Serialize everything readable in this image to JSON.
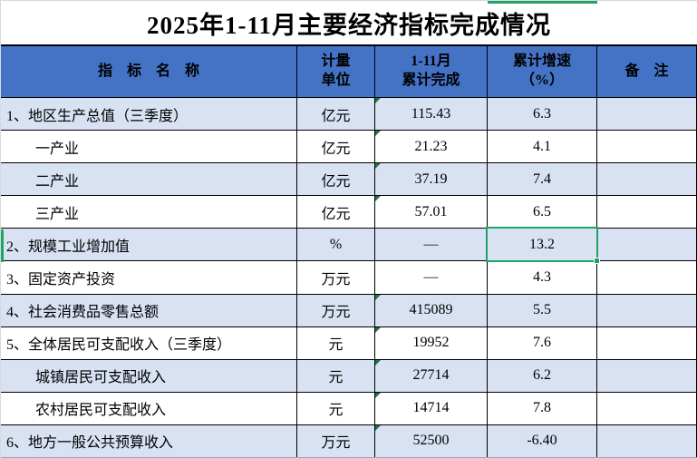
{
  "title": "2025年1-11月主要经济指标完成情况",
  "header": {
    "indicator": "指　标　名　称",
    "unit_line1": "计量",
    "unit_line2": "单位",
    "completed_line1": "1-11月",
    "completed_line2": "累计完成",
    "growth_line1": "累计增速",
    "growth_line2": "（%）",
    "remark": "备　注"
  },
  "rows": [
    {
      "name": "1、地区生产总值（三季度）",
      "unit": "亿元",
      "completed": "115.43",
      "growth": "6.3",
      "remark": ""
    },
    {
      "name": "一产业",
      "unit": "亿元",
      "completed": "21.23",
      "growth": "4.1",
      "remark": ""
    },
    {
      "name": "二产业",
      "unit": "亿元",
      "completed": "37.19",
      "growth": "7.4",
      "remark": ""
    },
    {
      "name": "三产业",
      "unit": "亿元",
      "completed": "57.01",
      "growth": "6.5",
      "remark": ""
    },
    {
      "name": "2、规模工业增加值",
      "unit": "%",
      "completed": "—",
      "growth": "13.2",
      "remark": ""
    },
    {
      "name": "3、固定资产投资",
      "unit": "万元",
      "completed": "—",
      "growth": "4.3",
      "remark": ""
    },
    {
      "name": "4、社会消费品零售总额",
      "unit": "万元",
      "completed": "415089",
      "growth": "5.5",
      "remark": ""
    },
    {
      "name": "5、全体居民可支配收入（三季度）",
      "unit": "元",
      "completed": "19952",
      "growth": "7.6",
      "remark": ""
    },
    {
      "name": "城镇居民可支配收入",
      "unit": "元",
      "completed": "27714",
      "growth": "6.2",
      "remark": ""
    },
    {
      "name": "农村居民可支配收入",
      "unit": "元",
      "completed": "14714",
      "growth": "7.8",
      "remark": ""
    },
    {
      "name": "6、地方一般公共预算收入",
      "unit": "万元",
      "completed": "52500",
      "growth": "-6.40",
      "remark": ""
    }
  ],
  "selection": {
    "selected_value": "13.2",
    "selected_row": "2、规模工业增加值",
    "selected_column": "累计增速（%）"
  },
  "colors": {
    "header_bg": "#4472c4",
    "band_bg": "#d9e2f3",
    "selection_green": "#21a366",
    "flag_green": "#217346",
    "grid_line": "#000000"
  }
}
